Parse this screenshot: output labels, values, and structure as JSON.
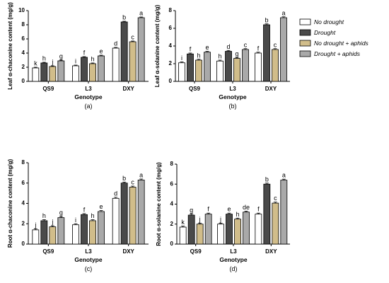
{
  "legend": [
    {
      "name": "No drought",
      "color": "#ffffff"
    },
    {
      "name": "Drought",
      "color": "#4a4a4a"
    },
    {
      "name": "No drought + aphids",
      "color": "#d1bd8a"
    },
    {
      "name": "Drought + aphids",
      "color": "#a9a9a9"
    }
  ],
  "chart_data": [
    {
      "type": "bar",
      "panel_label": "(a)",
      "xlabel": "Genotype",
      "ylabel": "Leaf α-chaconine content (mg/g)",
      "ylim": [
        0,
        10
      ],
      "yticks": [
        0,
        2,
        4,
        6,
        8,
        10
      ],
      "categories": [
        "QS9",
        "L3",
        "DXY"
      ],
      "series": [
        {
          "name": "No drought",
          "values": [
            1.9,
            2.2,
            4.7
          ],
          "errors": [
            0.1,
            0.1,
            0.1
          ],
          "labels": [
            "k",
            "i",
            "d"
          ]
        },
        {
          "name": "Drought",
          "values": [
            2.6,
            3.4,
            8.4
          ],
          "errors": [
            0.1,
            0.1,
            0.1
          ],
          "labels": [
            "h",
            "f",
            "b"
          ]
        },
        {
          "name": "No drought + aphids",
          "values": [
            2.1,
            2.5,
            5.6
          ],
          "errors": [
            0.1,
            0.1,
            0.1
          ],
          "labels": [
            "j",
            "h",
            "c"
          ]
        },
        {
          "name": "Drought + aphids",
          "values": [
            2.9,
            3.6,
            9.0
          ],
          "errors": [
            0.1,
            0.1,
            0.1
          ],
          "labels": [
            "g",
            "e",
            "a"
          ]
        }
      ]
    },
    {
      "type": "bar",
      "panel_label": "(b)",
      "xlabel": "Genotype",
      "ylabel": "Leaf α-solanine content (mg/g)",
      "ylim": [
        0,
        8
      ],
      "yticks": [
        0,
        2,
        4,
        6,
        8
      ],
      "categories": [
        "QS9",
        "L3",
        "DXY"
      ],
      "series": [
        {
          "name": "No drought",
          "values": [
            2.1,
            2.3,
            3.2
          ],
          "errors": [
            0.1,
            0.1,
            0.1
          ],
          "labels": [
            "i",
            "h",
            "f"
          ]
        },
        {
          "name": "Drought",
          "values": [
            3.1,
            3.4,
            6.4
          ],
          "errors": [
            0.1,
            0.1,
            0.1
          ],
          "labels": [
            "f",
            "d",
            "b"
          ]
        },
        {
          "name": "No drought + aphids",
          "values": [
            2.4,
            2.6,
            3.6
          ],
          "errors": [
            0.1,
            0.1,
            0.1
          ],
          "labels": [
            "h",
            "g",
            "c"
          ]
        },
        {
          "name": "Drought + aphids",
          "values": [
            3.3,
            3.6,
            7.2
          ],
          "errors": [
            0.1,
            0.1,
            0.1
          ],
          "labels": [
            "e",
            "c",
            "a"
          ]
        }
      ]
    },
    {
      "type": "bar",
      "panel_label": "(c)",
      "xlabel": "Genotype",
      "ylabel": "Root α-chaconine content (mg/g)",
      "ylim": [
        0,
        8
      ],
      "yticks": [
        0,
        2,
        4,
        6,
        8
      ],
      "categories": [
        "QS9",
        "L3",
        "DXY"
      ],
      "series": [
        {
          "name": "No drought",
          "values": [
            1.4,
            1.9,
            4.5
          ],
          "errors": [
            0.1,
            0.1,
            0.1
          ],
          "labels": [
            "j",
            "i",
            "d"
          ]
        },
        {
          "name": "Drought",
          "values": [
            2.3,
            2.9,
            6.0
          ],
          "errors": [
            0.1,
            0.1,
            0.1
          ],
          "labels": [
            "h",
            "f",
            "b"
          ]
        },
        {
          "name": "No drought + aphids",
          "values": [
            1.7,
            2.3,
            5.6
          ],
          "errors": [
            0.1,
            0.1,
            0.1
          ],
          "labels": [
            "j",
            "h",
            "c"
          ]
        },
        {
          "name": "Drought + aphids",
          "values": [
            2.6,
            3.2,
            6.3
          ],
          "errors": [
            0.1,
            0.1,
            0.1
          ],
          "labels": [
            "g",
            "e",
            "a"
          ]
        }
      ]
    },
    {
      "type": "bar",
      "panel_label": "(d)",
      "xlabel": "Genotype",
      "ylabel": "Root α-solanine content (mg/g)",
      "ylim": [
        0,
        8
      ],
      "yticks": [
        0,
        2,
        4,
        6,
        8
      ],
      "categories": [
        "QS9",
        "L3",
        "DXY"
      ],
      "series": [
        {
          "name": "No drought",
          "values": [
            1.7,
            2.0,
            3.0
          ],
          "errors": [
            0.1,
            0.1,
            0.1
          ],
          "labels": [
            "k",
            "j",
            "f"
          ]
        },
        {
          "name": "Drought",
          "values": [
            2.9,
            3.0,
            6.0
          ],
          "errors": [
            0.1,
            0.1,
            0.1
          ],
          "labels": [
            "g",
            "e",
            "b"
          ]
        },
        {
          "name": "No drought + aphids",
          "values": [
            2.0,
            2.5,
            4.1
          ],
          "errors": [
            0.1,
            0.1,
            0.1
          ],
          "labels": [
            "j",
            "h",
            "c"
          ]
        },
        {
          "name": "Drought + aphids",
          "values": [
            3.0,
            3.2,
            6.4
          ],
          "errors": [
            0.1,
            0.1,
            0.1
          ],
          "labels": [
            "f",
            "de",
            "a"
          ]
        }
      ]
    }
  ]
}
